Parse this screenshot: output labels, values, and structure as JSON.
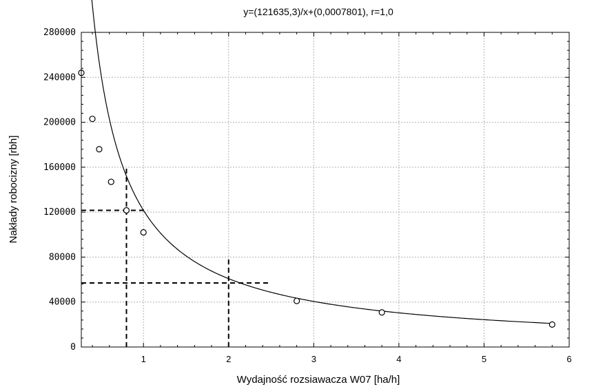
{
  "chart_data": {
    "type": "scatter",
    "title": "y=(121635,3)/x+(0,0007801), r=1,0",
    "xlabel": "Wydajność rozsiawacza W07 [ha/h]",
    "ylabel": "Nakłady robocizny [rbh]",
    "xlim": [
      0.27,
      6
    ],
    "ylim": [
      0,
      280000
    ],
    "xticks": [
      1,
      2,
      3,
      4,
      5,
      6
    ],
    "yticks": [
      0,
      40000,
      80000,
      120000,
      160000,
      200000,
      240000,
      280000
    ],
    "xtick_labels": [
      "1",
      "2",
      "3",
      "4",
      "5",
      "6"
    ],
    "ytick_labels": [
      "0",
      "40000",
      "80000",
      "120000",
      "160000",
      "200000",
      "240000",
      "280000"
    ],
    "grid": true,
    "fit": {
      "a": 121635.3,
      "b": 0.0007801,
      "x_from": 0.27,
      "x_to": 5.8
    },
    "points": [
      {
        "x": 0.27,
        "y": 244000
      },
      {
        "x": 0.4,
        "y": 203000
      },
      {
        "x": 0.48,
        "y": 176000
      },
      {
        "x": 0.62,
        "y": 147000
      },
      {
        "x": 0.8,
        "y": 121600
      },
      {
        "x": 1.0,
        "y": 102000
      },
      {
        "x": 2.8,
        "y": 41000
      },
      {
        "x": 3.8,
        "y": 30800
      },
      {
        "x": 5.8,
        "y": 20000
      }
    ],
    "reference_lines": [
      {
        "orientation": "vertical",
        "x": 0.8,
        "y_from": 0,
        "y_to": 160000
      },
      {
        "orientation": "horizontal",
        "y": 121600,
        "x_from": 0.27,
        "x_to": 1.05
      },
      {
        "orientation": "vertical",
        "x": 2.0,
        "y_from": 0,
        "y_to": 80000
      },
      {
        "orientation": "horizontal",
        "y": 57000,
        "x_from": 0.27,
        "x_to": 2.5
      }
    ]
  }
}
